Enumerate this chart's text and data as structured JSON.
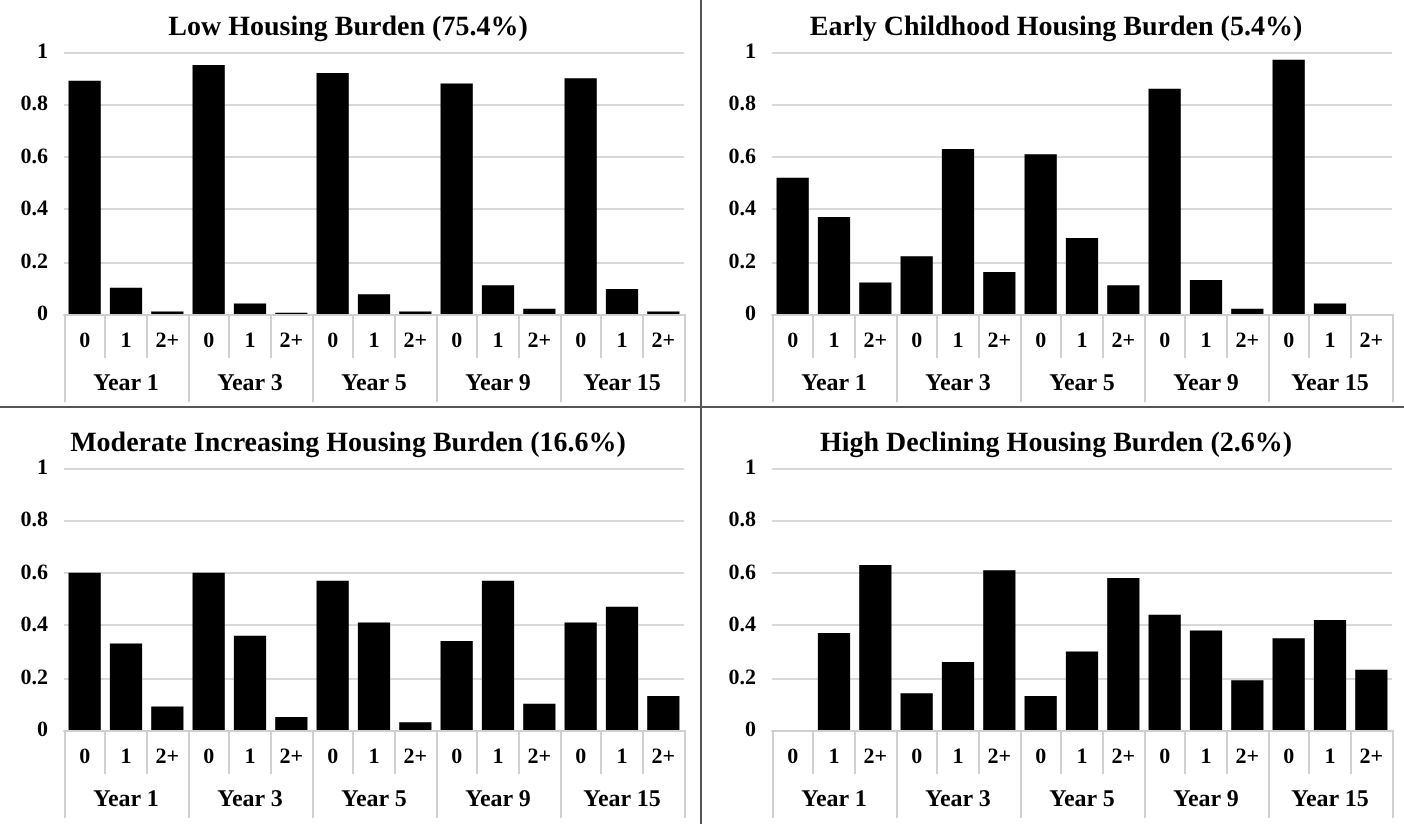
{
  "chart_data": [
    {
      "type": "bar",
      "title": "Low Housing Burden (75.4%)",
      "categories": [
        "0",
        "1",
        "2+",
        "0",
        "1",
        "2+",
        "0",
        "1",
        "2+",
        "0",
        "1",
        "2+",
        "0",
        "1",
        "2+"
      ],
      "annotations": [
        "Year 1",
        "Year 3",
        "Year 5",
        "Year 9",
        "Year 15"
      ],
      "series": [
        {
          "color": "#000000",
          "values": [
            0.89,
            0.1,
            0.01,
            0.95,
            0.04,
            0.005,
            0.92,
            0.075,
            0.01,
            0.88,
            0.11,
            0.02,
            0.9,
            0.095,
            0.01
          ]
        }
      ],
      "ylim": [
        0,
        1
      ],
      "yticks": [
        0,
        0.2,
        0.4,
        0.6,
        0.8,
        1
      ],
      "grid": "y"
    },
    {
      "type": "bar",
      "title": "Early Childhood Housing Burden (5.4%)",
      "categories": [
        "0",
        "1",
        "2+",
        "0",
        "1",
        "2+",
        "0",
        "1",
        "2+",
        "0",
        "1",
        "2+",
        "0",
        "1",
        "2+"
      ],
      "annotations": [
        "Year 1",
        "Year 3",
        "Year 5",
        "Year 9",
        "Year 15"
      ],
      "series": [
        {
          "color": "#000000",
          "values": [
            0.52,
            0.37,
            0.12,
            0.22,
            0.63,
            0.16,
            0.61,
            0.29,
            0.11,
            0.86,
            0.13,
            0.02,
            0.97,
            0.04,
            0
          ]
        }
      ],
      "ylim": [
        0,
        1
      ],
      "yticks": [
        0,
        0.2,
        0.4,
        0.6,
        0.8,
        1
      ],
      "grid": "y"
    },
    {
      "type": "bar",
      "title": "Moderate Increasing Housing Burden (16.6%)",
      "categories": [
        "0",
        "1",
        "2+",
        "0",
        "1",
        "2+",
        "0",
        "1",
        "2+",
        "0",
        "1",
        "2+",
        "0",
        "1",
        "2+"
      ],
      "annotations": [
        "Year 1",
        "Year 3",
        "Year 5",
        "Year 9",
        "Year 15"
      ],
      "series": [
        {
          "color": "#000000",
          "values": [
            0.6,
            0.33,
            0.09,
            0.6,
            0.36,
            0.05,
            0.57,
            0.41,
            0.03,
            0.34,
            0.57,
            0.1,
            0.41,
            0.47,
            0.13
          ]
        }
      ],
      "ylim": [
        0,
        1
      ],
      "yticks": [
        0,
        0.2,
        0.4,
        0.6,
        0.8,
        1
      ],
      "grid": "y"
    },
    {
      "type": "bar",
      "title": "High Declining Housing Burden (2.6%)",
      "categories": [
        "0",
        "1",
        "2+",
        "0",
        "1",
        "2+",
        "0",
        "1",
        "2+",
        "0",
        "1",
        "2+",
        "0",
        "1",
        "2+"
      ],
      "annotations": [
        "Year 1",
        "Year 3",
        "Year 5",
        "Year 9",
        "Year 15"
      ],
      "series": [
        {
          "color": "#000000",
          "values": [
            0,
            0.37,
            0.63,
            0.14,
            0.26,
            0.61,
            0.13,
            0.3,
            0.58,
            0.44,
            0.38,
            0.19,
            0.35,
            0.42,
            0.23
          ]
        }
      ],
      "ylim": [
        0,
        1
      ],
      "yticks": [
        0,
        0.2,
        0.4,
        0.6,
        0.8,
        1
      ],
      "grid": "y"
    }
  ]
}
